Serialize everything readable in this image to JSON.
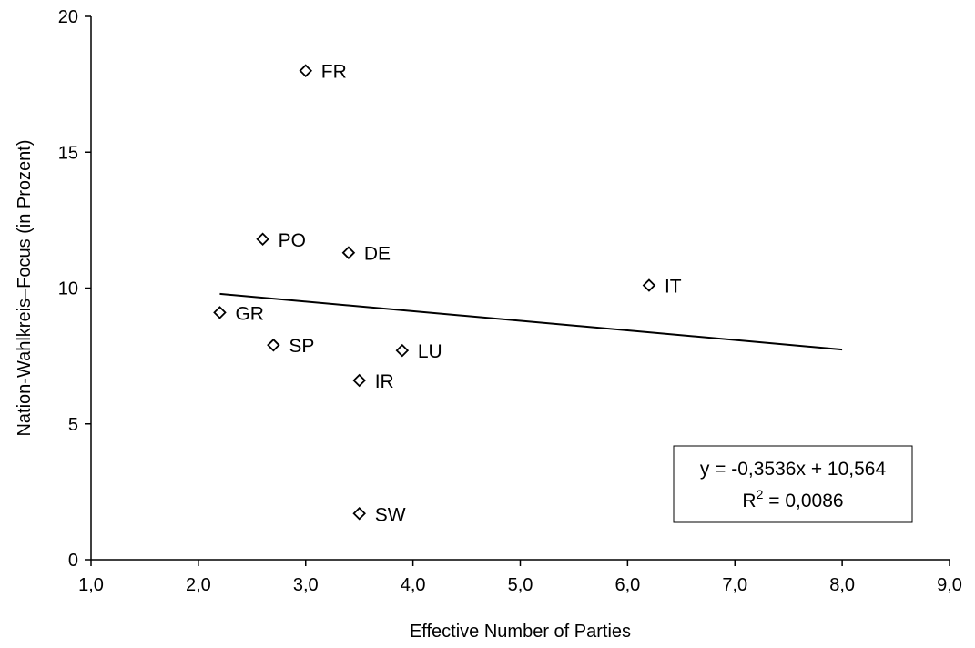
{
  "chart_data": {
    "type": "scatter",
    "xlabel": "Effective Number of Parties",
    "ylabel": "Nation-Wahlkreis–Focus (in Prozent)",
    "xlim": [
      1.0,
      9.0
    ],
    "ylim": [
      0,
      20
    ],
    "x_ticks": [
      1,
      2,
      3,
      4,
      5,
      6,
      7,
      8,
      9
    ],
    "x_tick_labels": [
      "1,0",
      "2,0",
      "3,0",
      "4,0",
      "5,0",
      "6,0",
      "7,0",
      "8,0",
      "9,0"
    ],
    "y_ticks": [
      0,
      5,
      10,
      15,
      20
    ],
    "y_tick_labels": [
      "0",
      "5",
      "10",
      "15",
      "20"
    ],
    "grid": false,
    "legend": "none",
    "marker": "diamond",
    "points": [
      {
        "label": "FR",
        "x": 3.0,
        "y": 18.0
      },
      {
        "label": "PO",
        "x": 2.6,
        "y": 11.8
      },
      {
        "label": "DE",
        "x": 3.4,
        "y": 11.3
      },
      {
        "label": "IT",
        "x": 6.2,
        "y": 10.1
      },
      {
        "label": "GR",
        "x": 2.2,
        "y": 9.1
      },
      {
        "label": "SP",
        "x": 2.7,
        "y": 7.9
      },
      {
        "label": "LU",
        "x": 3.9,
        "y": 7.7
      },
      {
        "label": "IR",
        "x": 3.5,
        "y": 6.6
      },
      {
        "label": "SW",
        "x": 3.5,
        "y": 1.7
      }
    ],
    "trendline": {
      "type": "linear",
      "slope": -0.3536,
      "intercept": 10.564,
      "x_range": [
        2.2,
        8.0
      ],
      "equation": "y = -0,3536x + 10,564",
      "r2_prefix": "R",
      "r2_sup": "2",
      "r2_value": " = 0,0086"
    }
  }
}
